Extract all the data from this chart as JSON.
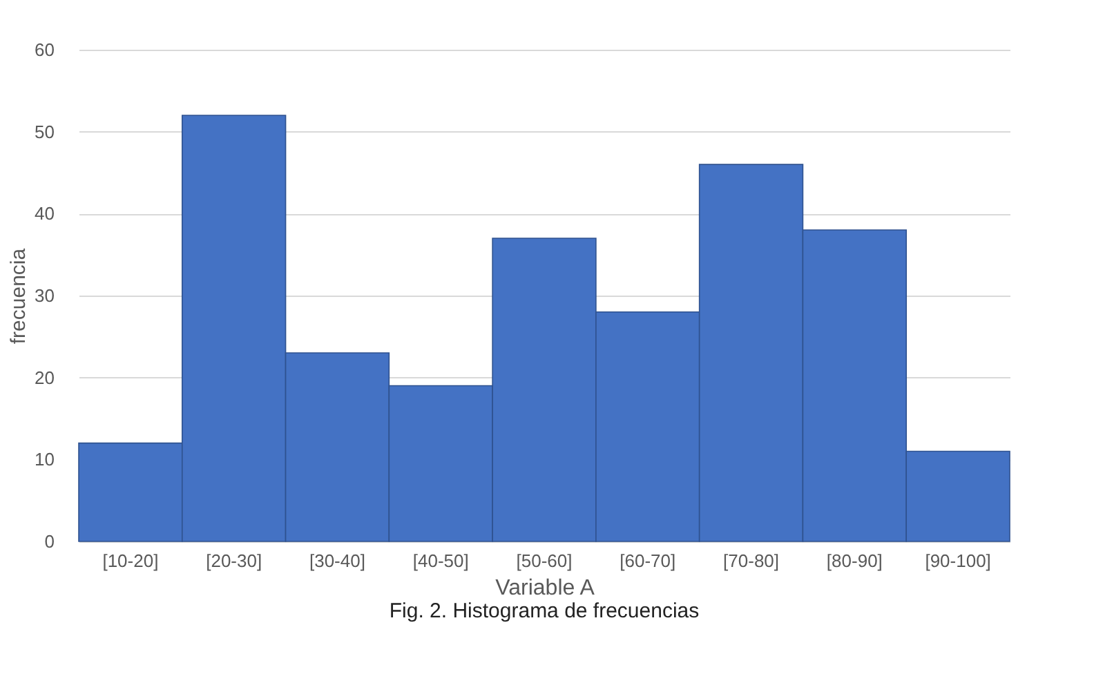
{
  "chart_data": {
    "type": "bar",
    "categories": [
      "[10-20]",
      "[20-30]",
      "[30-40]",
      "[40-50]",
      "[50-60]",
      "[60-70]",
      "[70-80]",
      "[80-90]",
      "[90-100]"
    ],
    "values": [
      12,
      52,
      23,
      19,
      37,
      28,
      46,
      38,
      11
    ],
    "color": "#4472c4",
    "xlabel": "Variable A",
    "ylabel": "frecuencia",
    "ylim": [
      0,
      60
    ],
    "yticks": [
      0,
      10,
      20,
      30,
      40,
      50,
      60
    ],
    "grid": "y",
    "annotations": [
      "Fig. 2. Histograma de frecuencias"
    ]
  }
}
